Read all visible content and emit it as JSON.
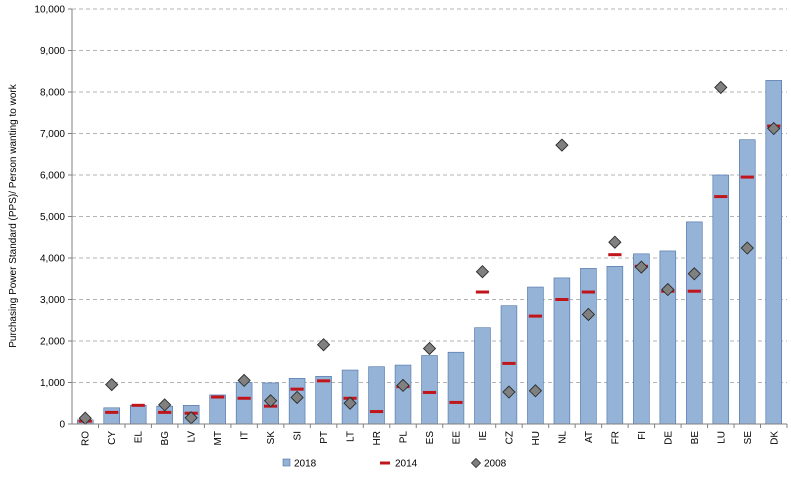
{
  "chart_data": {
    "type": "bar",
    "title": "",
    "xlabel": "",
    "ylabel": "Purchasing Power Standard (PPS)/ Person wanting to work",
    "ylim": [
      0,
      10000
    ],
    "yticks": [
      0,
      1000,
      2000,
      3000,
      4000,
      5000,
      6000,
      7000,
      8000,
      9000,
      10000
    ],
    "ytick_labels": [
      "0",
      "1,000",
      "2,000",
      "3,000",
      "4,000",
      "5,000",
      "6,000",
      "7,000",
      "8,000",
      "9,000",
      "10,000"
    ],
    "grid": "horizontal dashed",
    "legend_position": "bottom-center",
    "categories": [
      "RO",
      "CY",
      "EL",
      "BG",
      "LV",
      "MT",
      "IT",
      "SK",
      "SI",
      "PT",
      "LT",
      "HR",
      "PL",
      "ES",
      "EE",
      "IE",
      "CZ",
      "HU",
      "NL",
      "AT",
      "FR",
      "FI",
      "DE",
      "BE",
      "LU",
      "SE",
      "DK"
    ],
    "series": [
      {
        "name": "2018",
        "kind": "bar",
        "color": "#95b3d7",
        "values": [
          100,
          390,
          450,
          430,
          450,
          700,
          1000,
          990,
          1100,
          1150,
          1300,
          1380,
          1420,
          1650,
          1730,
          2320,
          2850,
          3300,
          3520,
          3750,
          3800,
          4100,
          4170,
          4870,
          6000,
          6850,
          8280
        ]
      },
      {
        "name": "2014",
        "kind": "dash",
        "color": "#c0161b",
        "values": [
          70,
          280,
          450,
          280,
          260,
          650,
          620,
          430,
          840,
          1040,
          620,
          300,
          900,
          760,
          520,
          3180,
          1460,
          2600,
          3000,
          3180,
          4080,
          3800,
          3200,
          3200,
          5480,
          5950,
          7180
        ]
      },
      {
        "name": "2008",
        "kind": "diamond",
        "color": "#808080",
        "values": [
          140,
          950,
          null,
          460,
          150,
          null,
          1050,
          560,
          640,
          1910,
          500,
          null,
          930,
          1820,
          null,
          3670,
          770,
          800,
          6720,
          2640,
          4380,
          3780,
          3240,
          3620,
          8110,
          4240,
          7120
        ]
      }
    ]
  },
  "colors": {
    "bar_fill": "#95b3d7",
    "bar_stroke": "#4a6fa5",
    "dash": "#c0161b",
    "diamond_fill": "#808080",
    "diamond_stroke": "#2b2b2b",
    "axis": "#808080",
    "grid": "#9a9a9a"
  }
}
